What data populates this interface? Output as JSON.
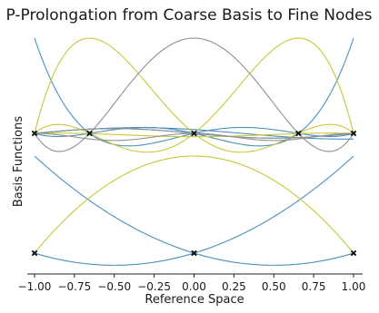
{
  "chart_data": {
    "type": "line",
    "title": "P-Prolongation from Coarse Basis to Fine Nodes",
    "xlabel": "Reference Space",
    "ylabel": "Basis Functions",
    "xlim": [
      -1.0,
      1.0
    ],
    "xticks": [
      "-1.00",
      "-0.75",
      "-0.50",
      "-0.25",
      "0.00",
      "0.25",
      "0.50",
      "0.75",
      "1.00"
    ],
    "yticks_visible": false,
    "grid": false,
    "legend": "none",
    "colors": {
      "blue": "#4a90c0",
      "yellow": "#c8c83a",
      "gray": "#909090",
      "marker": "#111111"
    },
    "panels": [
      {
        "name": "fine",
        "nodes": [
          -1.0,
          -0.6547,
          0.0,
          0.6547,
          1.0
        ],
        "series": [
          {
            "color": "blue",
            "values": "l0"
          },
          {
            "color": "blue",
            "values": "l4"
          },
          {
            "color": "blue",
            "values": "c1"
          },
          {
            "color": "blue",
            "values": "c3"
          },
          {
            "color": "yellow",
            "values": "l1"
          },
          {
            "color": "yellow",
            "values": "l3"
          },
          {
            "color": "yellow",
            "values": "c2"
          },
          {
            "color": "gray",
            "values": "l2"
          },
          {
            "color": "gray",
            "values": "c4"
          },
          {
            "color": "gray",
            "values": "c5"
          }
        ],
        "markers": [
          -1.0,
          -0.6547,
          0.0,
          0.6547,
          1.0
        ]
      },
      {
        "name": "coarse",
        "nodes": [
          -1.0,
          0.0,
          1.0
        ],
        "series": [
          {
            "color": "blue",
            "values": "q0"
          },
          {
            "color": "blue",
            "values": "q2"
          },
          {
            "color": "yellow",
            "values": "q1"
          }
        ],
        "markers": [
          -1.0,
          0.0,
          1.0
        ]
      }
    ]
  }
}
